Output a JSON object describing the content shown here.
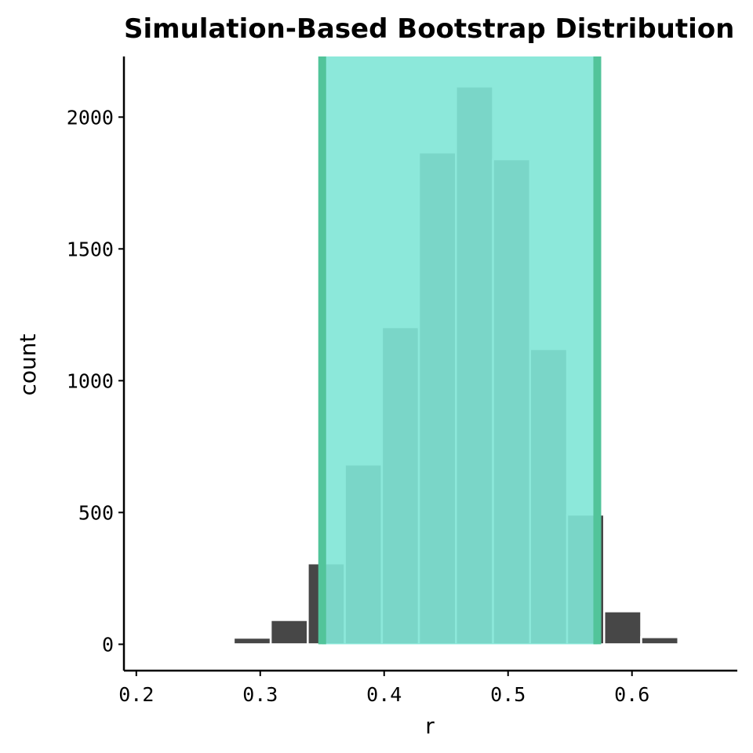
{
  "chart_data": {
    "type": "bar",
    "title": "Simulation-Based Bootstrap Distribution",
    "xlabel": "r",
    "ylabel": "count",
    "xlim": [
      0.19,
      0.685
    ],
    "ylim": [
      -100,
      2230
    ],
    "x_ticks": [
      0.2,
      0.3,
      0.4,
      0.5,
      0.6
    ],
    "x_tick_labels": [
      "0.2",
      "0.3",
      "0.4",
      "0.5",
      "0.6"
    ],
    "y_ticks": [
      0,
      500,
      1000,
      1500,
      2000
    ],
    "y_tick_labels": [
      "0",
      "500",
      "1000",
      "1500",
      "2000"
    ],
    "bin_width": 0.0299,
    "bins": [
      {
        "x": 0.2935,
        "count": 25
      },
      {
        "x": 0.3234,
        "count": 92
      },
      {
        "x": 0.3533,
        "count": 307
      },
      {
        "x": 0.3832,
        "count": 682
      },
      {
        "x": 0.4131,
        "count": 1203
      },
      {
        "x": 0.443,
        "count": 1866
      },
      {
        "x": 0.4729,
        "count": 2116
      },
      {
        "x": 0.5028,
        "count": 1840
      },
      {
        "x": 0.5327,
        "count": 1120
      },
      {
        "x": 0.5626,
        "count": 492
      },
      {
        "x": 0.5925,
        "count": 125
      },
      {
        "x": 0.6224,
        "count": 27
      }
    ],
    "confidence_interval": {
      "lower": 0.35,
      "upper": 0.572
    },
    "grid": false,
    "legend": "none",
    "colors": {
      "bar_fill": "#474747",
      "bar_outline": "#ffffff",
      "ci_shade": "#7fe5d6",
      "ci_shade_opacity": 0.9,
      "ci_line": "#52c49a"
    }
  }
}
